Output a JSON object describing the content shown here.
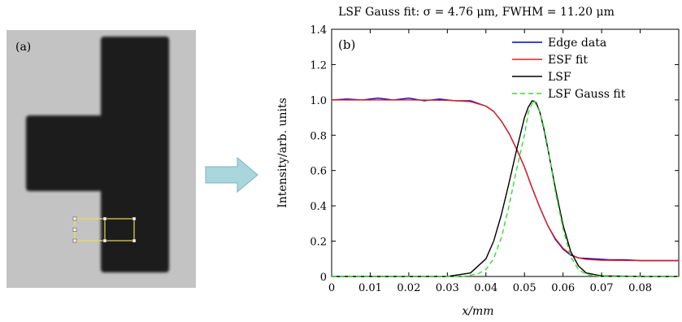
{
  "panel_a": {
    "label": "(a)",
    "background_color": "#c3c3c3",
    "object_color": "#1c1c1c",
    "roi_color": "#e8e04a"
  },
  "arrow": {
    "color": "#a9d6dc",
    "border_color": "#7fb3bb",
    "icon": "right-arrow-icon"
  },
  "chart_data": {
    "type": "line",
    "panel_label": "(b)",
    "title": "LSF Gauss fit: σ = 4.76 μm, FWHM = 11.20 μm",
    "xlabel": "x/mm",
    "ylabel": "Intensity/arb. units",
    "xlim": [
      0,
      0.09
    ],
    "ylim": [
      0,
      1.4
    ],
    "xticks": [
      0,
      0.01,
      0.02,
      0.03,
      0.04,
      0.05,
      0.06,
      0.07,
      0.08
    ],
    "xtick_labels": [
      "0",
      "0.01",
      "0.02",
      "0.03",
      "0.04",
      "0.05",
      "0.06",
      "0.07",
      "0.08"
    ],
    "yticks": [
      0,
      0.2,
      0.4,
      0.6,
      0.8,
      1.0,
      1.2,
      1.4
    ],
    "ytick_labels": [
      "0",
      "0.2",
      "0.4",
      "0.6",
      "0.8",
      "1.0",
      "1.2",
      "1.4"
    ],
    "grid": false,
    "legend_position": "top-right",
    "series": [
      {
        "name": "Edge data",
        "color": "#0000cc",
        "style": "solid",
        "x": [
          0,
          0.004,
          0.008,
          0.012,
          0.016,
          0.02,
          0.024,
          0.028,
          0.032,
          0.036,
          0.04,
          0.042,
          0.044,
          0.046,
          0.048,
          0.05,
          0.052,
          0.054,
          0.056,
          0.058,
          0.06,
          0.062,
          0.064,
          0.068,
          0.072,
          0.076,
          0.08,
          0.084,
          0.088,
          0.09
        ],
        "y": [
          1.0,
          1.005,
          1.0,
          1.01,
          1.0,
          1.01,
          0.995,
          1.005,
          0.995,
          0.995,
          0.965,
          0.935,
          0.88,
          0.81,
          0.72,
          0.62,
          0.5,
          0.39,
          0.29,
          0.21,
          0.155,
          0.12,
          0.105,
          0.1,
          0.095,
          0.095,
          0.09,
          0.09,
          0.09,
          0.09
        ]
      },
      {
        "name": "ESF fit",
        "color": "#e02020",
        "style": "solid",
        "x": [
          0,
          0.01,
          0.02,
          0.03,
          0.036,
          0.04,
          0.042,
          0.044,
          0.046,
          0.048,
          0.05,
          0.052,
          0.054,
          0.056,
          0.058,
          0.06,
          0.062,
          0.064,
          0.066,
          0.07,
          0.08,
          0.09
        ],
        "y": [
          1.0,
          1.0,
          1.0,
          0.998,
          0.99,
          0.965,
          0.935,
          0.88,
          0.81,
          0.72,
          0.62,
          0.5,
          0.39,
          0.29,
          0.215,
          0.16,
          0.125,
          0.105,
          0.097,
          0.092,
          0.09,
          0.09
        ]
      },
      {
        "name": "LSF",
        "color": "#000000",
        "style": "solid",
        "x": [
          0,
          0.03,
          0.036,
          0.04,
          0.042,
          0.044,
          0.046,
          0.048,
          0.05,
          0.051,
          0.052,
          0.053,
          0.054,
          0.055,
          0.056,
          0.058,
          0.06,
          0.062,
          0.064,
          0.066,
          0.07,
          0.08,
          0.09
        ],
        "y": [
          0,
          0.0,
          0.02,
          0.1,
          0.2,
          0.35,
          0.53,
          0.72,
          0.9,
          0.96,
          0.995,
          0.985,
          0.93,
          0.84,
          0.73,
          0.5,
          0.29,
          0.14,
          0.06,
          0.02,
          0.003,
          0,
          0
        ]
      },
      {
        "name": "LSF Gauss fit",
        "color": "#33dd33",
        "style": "dashed",
        "x": [
          0,
          0.034,
          0.038,
          0.04,
          0.042,
          0.044,
          0.046,
          0.048,
          0.05,
          0.051,
          0.0524,
          0.054,
          0.055,
          0.056,
          0.058,
          0.06,
          0.062,
          0.064,
          0.066,
          0.07,
          0.09
        ],
        "y": [
          0,
          0.0,
          0.015,
          0.04,
          0.1,
          0.22,
          0.4,
          0.61,
          0.8,
          0.93,
          1.0,
          0.93,
          0.85,
          0.74,
          0.48,
          0.27,
          0.11,
          0.04,
          0.01,
          0,
          0
        ]
      }
    ]
  }
}
